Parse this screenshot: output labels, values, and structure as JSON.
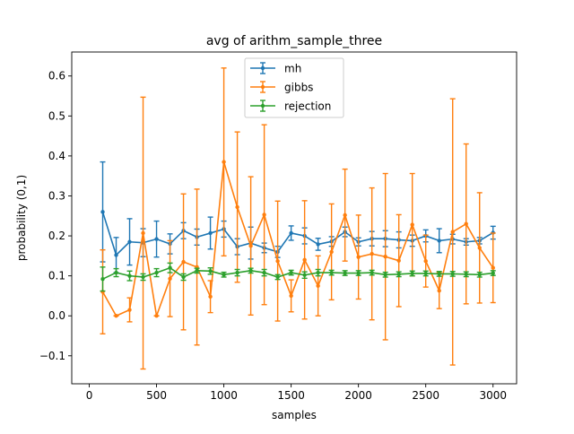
{
  "chart_data": {
    "type": "line",
    "title": "avg of arithm_sample_three",
    "xlabel": "samples",
    "ylabel": "probability (0,1)",
    "xlim": [
      -130,
      3175
    ],
    "ylim": [
      -0.17,
      0.66
    ],
    "xticks": [
      0,
      500,
      1000,
      1500,
      2000,
      2500,
      3000
    ],
    "yticks": [
      -0.1,
      0.0,
      0.1,
      0.2,
      0.3,
      0.4,
      0.5,
      0.6
    ],
    "ytick_labels": [
      "−0.1",
      "0.0",
      "0.1",
      "0.2",
      "0.3",
      "0.4",
      "0.5",
      "0.6"
    ],
    "grid": false,
    "legend_position": "top-center",
    "x": [
      100,
      200,
      300,
      400,
      500,
      600,
      700,
      800,
      900,
      1000,
      1100,
      1200,
      1300,
      1400,
      1500,
      1600,
      1700,
      1800,
      1900,
      2000,
      2100,
      2200,
      2300,
      2400,
      2500,
      2600,
      2700,
      2800,
      2900,
      3000
    ],
    "series": [
      {
        "name": "mh",
        "color": "#1f77b4",
        "values": [
          0.26,
          0.152,
          0.185,
          0.183,
          0.192,
          0.18,
          0.213,
          0.197,
          0.207,
          0.217,
          0.173,
          0.182,
          0.17,
          0.16,
          0.207,
          0.2,
          0.179,
          0.186,
          0.21,
          0.185,
          0.193,
          0.193,
          0.19,
          0.188,
          0.2,
          0.188,
          0.192,
          0.185,
          0.188,
          0.208
        ],
        "errors": [
          0.125,
          0.044,
          0.058,
          0.035,
          0.045,
          0.025,
          0.02,
          0.02,
          0.04,
          0.02,
          0.02,
          0.04,
          0.012,
          0.014,
          0.018,
          0.02,
          0.015,
          0.012,
          0.012,
          0.01,
          0.018,
          0.02,
          0.02,
          0.014,
          0.015,
          0.03,
          0.012,
          0.008,
          0.008,
          0.016
        ]
      },
      {
        "name": "gibbs",
        "color": "#ff7f0e",
        "values": [
          0.06,
          0.0,
          0.015,
          0.207,
          0.0,
          0.093,
          0.135,
          0.122,
          0.048,
          0.385,
          0.272,
          0.175,
          0.253,
          0.137,
          0.05,
          0.14,
          0.075,
          0.16,
          0.252,
          0.147,
          0.155,
          0.148,
          0.138,
          0.228,
          0.137,
          0.063,
          0.21,
          0.23,
          0.17,
          0.12
        ],
        "errors": [
          0.105,
          0.0,
          0.03,
          0.34,
          0.0,
          0.095,
          0.17,
          0.195,
          0.04,
          0.235,
          0.188,
          0.173,
          0.225,
          0.15,
          0.04,
          0.148,
          0.075,
          0.12,
          0.115,
          0.105,
          0.165,
          0.208,
          0.115,
          0.128,
          0.065,
          0.045,
          0.333,
          0.2,
          0.138,
          0.087
        ]
      },
      {
        "name": "rejection",
        "color": "#2ca02c",
        "values": [
          0.092,
          0.108,
          0.1,
          0.097,
          0.108,
          0.12,
          0.097,
          0.113,
          0.112,
          0.103,
          0.108,
          0.113,
          0.108,
          0.097,
          0.108,
          0.102,
          0.108,
          0.108,
          0.107,
          0.107,
          0.108,
          0.103,
          0.104,
          0.106,
          0.106,
          0.105,
          0.105,
          0.104,
          0.103,
          0.107
        ],
        "errors": [
          0.03,
          0.01,
          0.012,
          0.008,
          0.01,
          0.012,
          0.008,
          0.006,
          0.008,
          0.006,
          0.008,
          0.006,
          0.008,
          0.006,
          0.006,
          0.008,
          0.008,
          0.006,
          0.006,
          0.006,
          0.006,
          0.006,
          0.006,
          0.006,
          0.006,
          0.006,
          0.006,
          0.006,
          0.006,
          0.006
        ]
      }
    ]
  }
}
